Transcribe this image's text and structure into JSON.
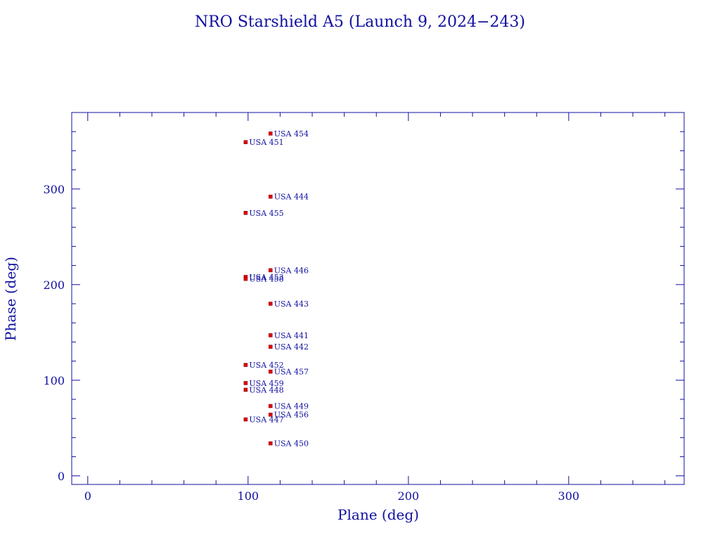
{
  "chart_data": {
    "type": "scatter",
    "title": "NRO Starshield A5 (Launch 9, 2024−243)",
    "xlabel": "Plane (deg)",
    "ylabel": "Phase (deg)",
    "xlim": [
      -10,
      372
    ],
    "ylim": [
      -9,
      380
    ],
    "xticks": [
      0,
      100,
      200,
      300
    ],
    "yticks": [
      0,
      100,
      200,
      300
    ],
    "grid": false,
    "colors": {
      "axes": "#1010a0",
      "text": "#1010a0",
      "marker": "#e00000"
    },
    "points": [
      {
        "x": 114,
        "y": 358,
        "label": "USA 454"
      },
      {
        "x": 98.5,
        "y": 349,
        "label": "USA 451"
      },
      {
        "x": 114,
        "y": 292,
        "label": "USA 444"
      },
      {
        "x": 98.5,
        "y": 275,
        "label": "USA 455"
      },
      {
        "x": 114,
        "y": 215,
        "label": "USA 446"
      },
      {
        "x": 98.5,
        "y": 208,
        "label": "USA 453"
      },
      {
        "x": 98.5,
        "y": 206,
        "label": "USA 458"
      },
      {
        "x": 114,
        "y": 180,
        "label": "USA 443"
      },
      {
        "x": 114,
        "y": 147,
        "label": "USA 441"
      },
      {
        "x": 114,
        "y": 135,
        "label": "USA 442"
      },
      {
        "x": 98.5,
        "y": 116,
        "label": "USA 452"
      },
      {
        "x": 114,
        "y": 109,
        "label": "USA 457"
      },
      {
        "x": 98.5,
        "y": 97,
        "label": "USA 459"
      },
      {
        "x": 98.5,
        "y": 90,
        "label": "USA 448"
      },
      {
        "x": 114,
        "y": 73,
        "label": "USA 449"
      },
      {
        "x": 114,
        "y": 64,
        "label": "USA 456"
      },
      {
        "x": 98.5,
        "y": 59,
        "label": "USA 447"
      },
      {
        "x": 114,
        "y": 34,
        "label": "USA 450"
      }
    ]
  }
}
